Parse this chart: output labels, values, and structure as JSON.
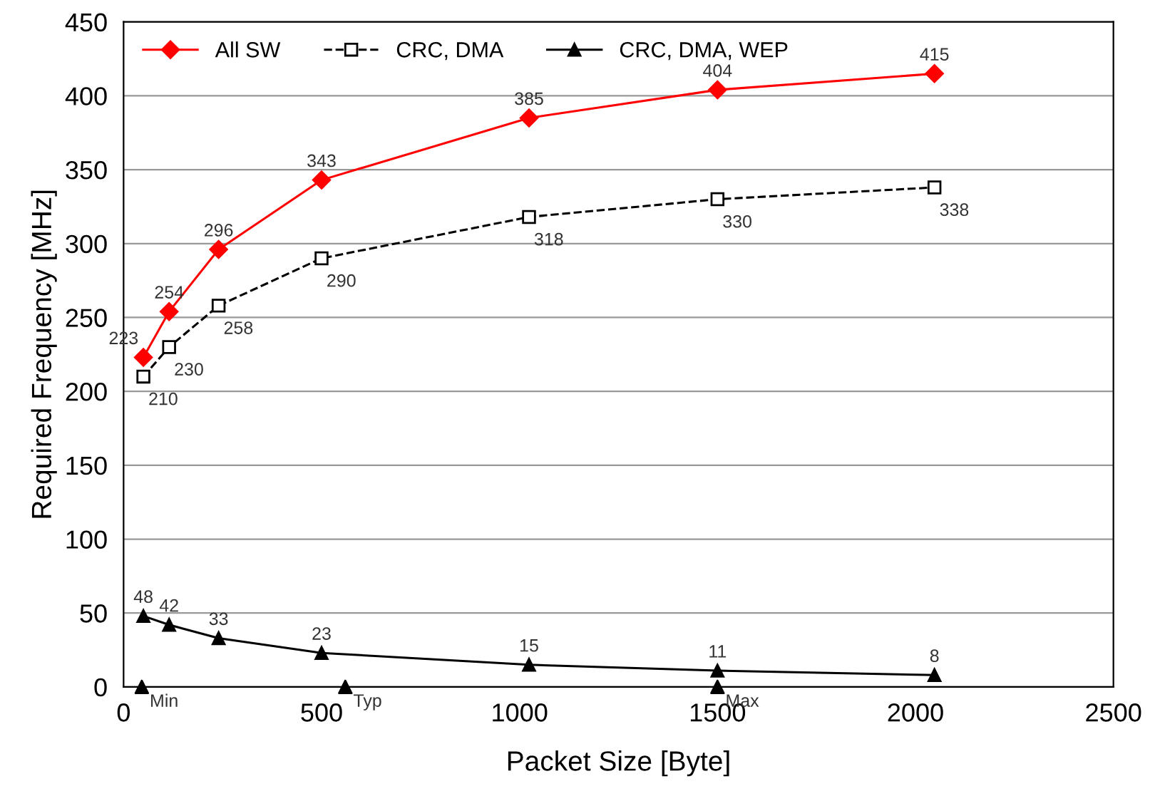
{
  "chart_data": {
    "type": "line",
    "xlabel": "Packet Size [Byte]",
    "ylabel": "Required Frequency [MHz]",
    "x": [
      50,
      115,
      240,
      500,
      1024,
      1500,
      2048
    ],
    "series": [
      {
        "name": "All SW",
        "color": "#ff0000",
        "values": [
          223,
          254,
          296,
          343,
          385,
          404,
          415
        ],
        "marker": "diamond",
        "line_style": "solid"
      },
      {
        "name": "CRC, DMA",
        "color": "#000000",
        "values": [
          210,
          230,
          258,
          290,
          318,
          330,
          338
        ],
        "marker": "square",
        "line_style": "dashed"
      },
      {
        "name": "CRC, DMA, WEP",
        "color": "#000000",
        "values": [
          48,
          42,
          33,
          23,
          15,
          11,
          8
        ],
        "marker": "triangle",
        "line_style": "solid"
      },
      {
        "type": "scatter",
        "color": "#000000",
        "x": [
          46,
          560,
          1500
        ],
        "values": [
          0,
          0,
          0
        ],
        "value_labels": [
          null,
          null,
          null
        ],
        "marker": "triangle"
      }
    ],
    "annotations": [
      {
        "text": "Min",
        "x": 46,
        "y": 0
      },
      {
        "text": "Typ",
        "x": 560,
        "y": 0
      },
      {
        "text": "Max",
        "x": 1500,
        "y": 0
      }
    ],
    "data_labels": true,
    "xlim": [
      0,
      2500
    ],
    "xticks": [
      0,
      500,
      1000,
      1500,
      2000,
      2500
    ],
    "ylim": [
      0,
      450
    ],
    "yticks": [
      0,
      50,
      100,
      150,
      200,
      250,
      300,
      350,
      400,
      450
    ],
    "grid": "y",
    "legend": "top left"
  }
}
